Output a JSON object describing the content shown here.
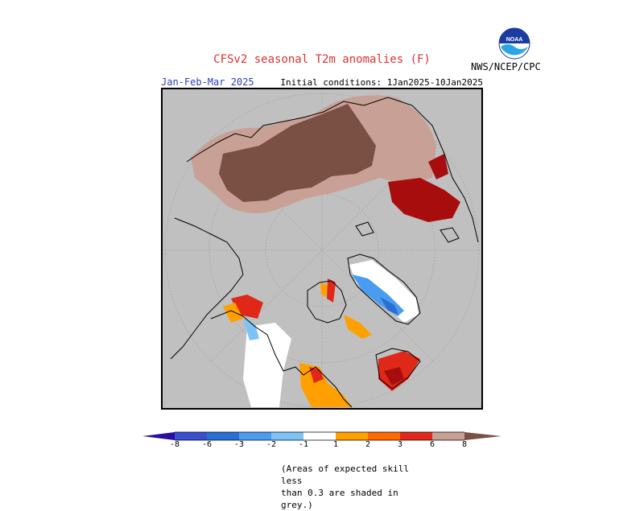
{
  "header": {
    "title": "CFSv2 seasonal T2m anomalies (F)",
    "season": "Jan-Feb-Mar 2025",
    "initial_conditions": "Initial conditions: 1Jan2025-10Jan2025",
    "agency": "NWS/NCEP/CPC",
    "logo_text": "NOAA"
  },
  "colors": {
    "skill_mask_grey": "#c0c0c0",
    "near_normal": "#ffffff",
    "cold": [
      "#2a0ea0",
      "#3a4fcf",
      "#2a6fd6",
      "#4a9cf0",
      "#7cc4f8"
    ],
    "warm": [
      "#ffa000",
      "#ff6a00",
      "#e02818",
      "#a80d0d",
      "#c8a096",
      "#7a5044"
    ]
  },
  "legend": {
    "tick_labels": [
      "-8",
      "-6",
      "-3",
      "-2",
      "-1",
      "1",
      "2",
      "3",
      "6",
      "8"
    ],
    "bins": [
      {
        "range": "< -8",
        "color": "#2a0ea0"
      },
      {
        "range": "-8 to -6",
        "color": "#3a4fcf"
      },
      {
        "range": "-6 to -3",
        "color": "#2a6fd6"
      },
      {
        "range": "-3 to -2",
        "color": "#4a9cf0"
      },
      {
        "range": "-2 to -1",
        "color": "#7cc4f8"
      },
      {
        "range": "-1 to 1",
        "color": "#ffffff"
      },
      {
        "range": "1 to 2",
        "color": "#ffa000"
      },
      {
        "range": "2 to 3",
        "color": "#ff6a00"
      },
      {
        "range": "3 to 6",
        "color": "#e02818"
      },
      {
        "range": "6 to 8",
        "color": "#c8a096"
      },
      {
        "range": "> 8",
        "color": "#7a5044"
      }
    ]
  },
  "footnote": {
    "line1": "(Areas of expected skill less",
    "line2": "than 0.3 are shaded in grey.)"
  }
}
